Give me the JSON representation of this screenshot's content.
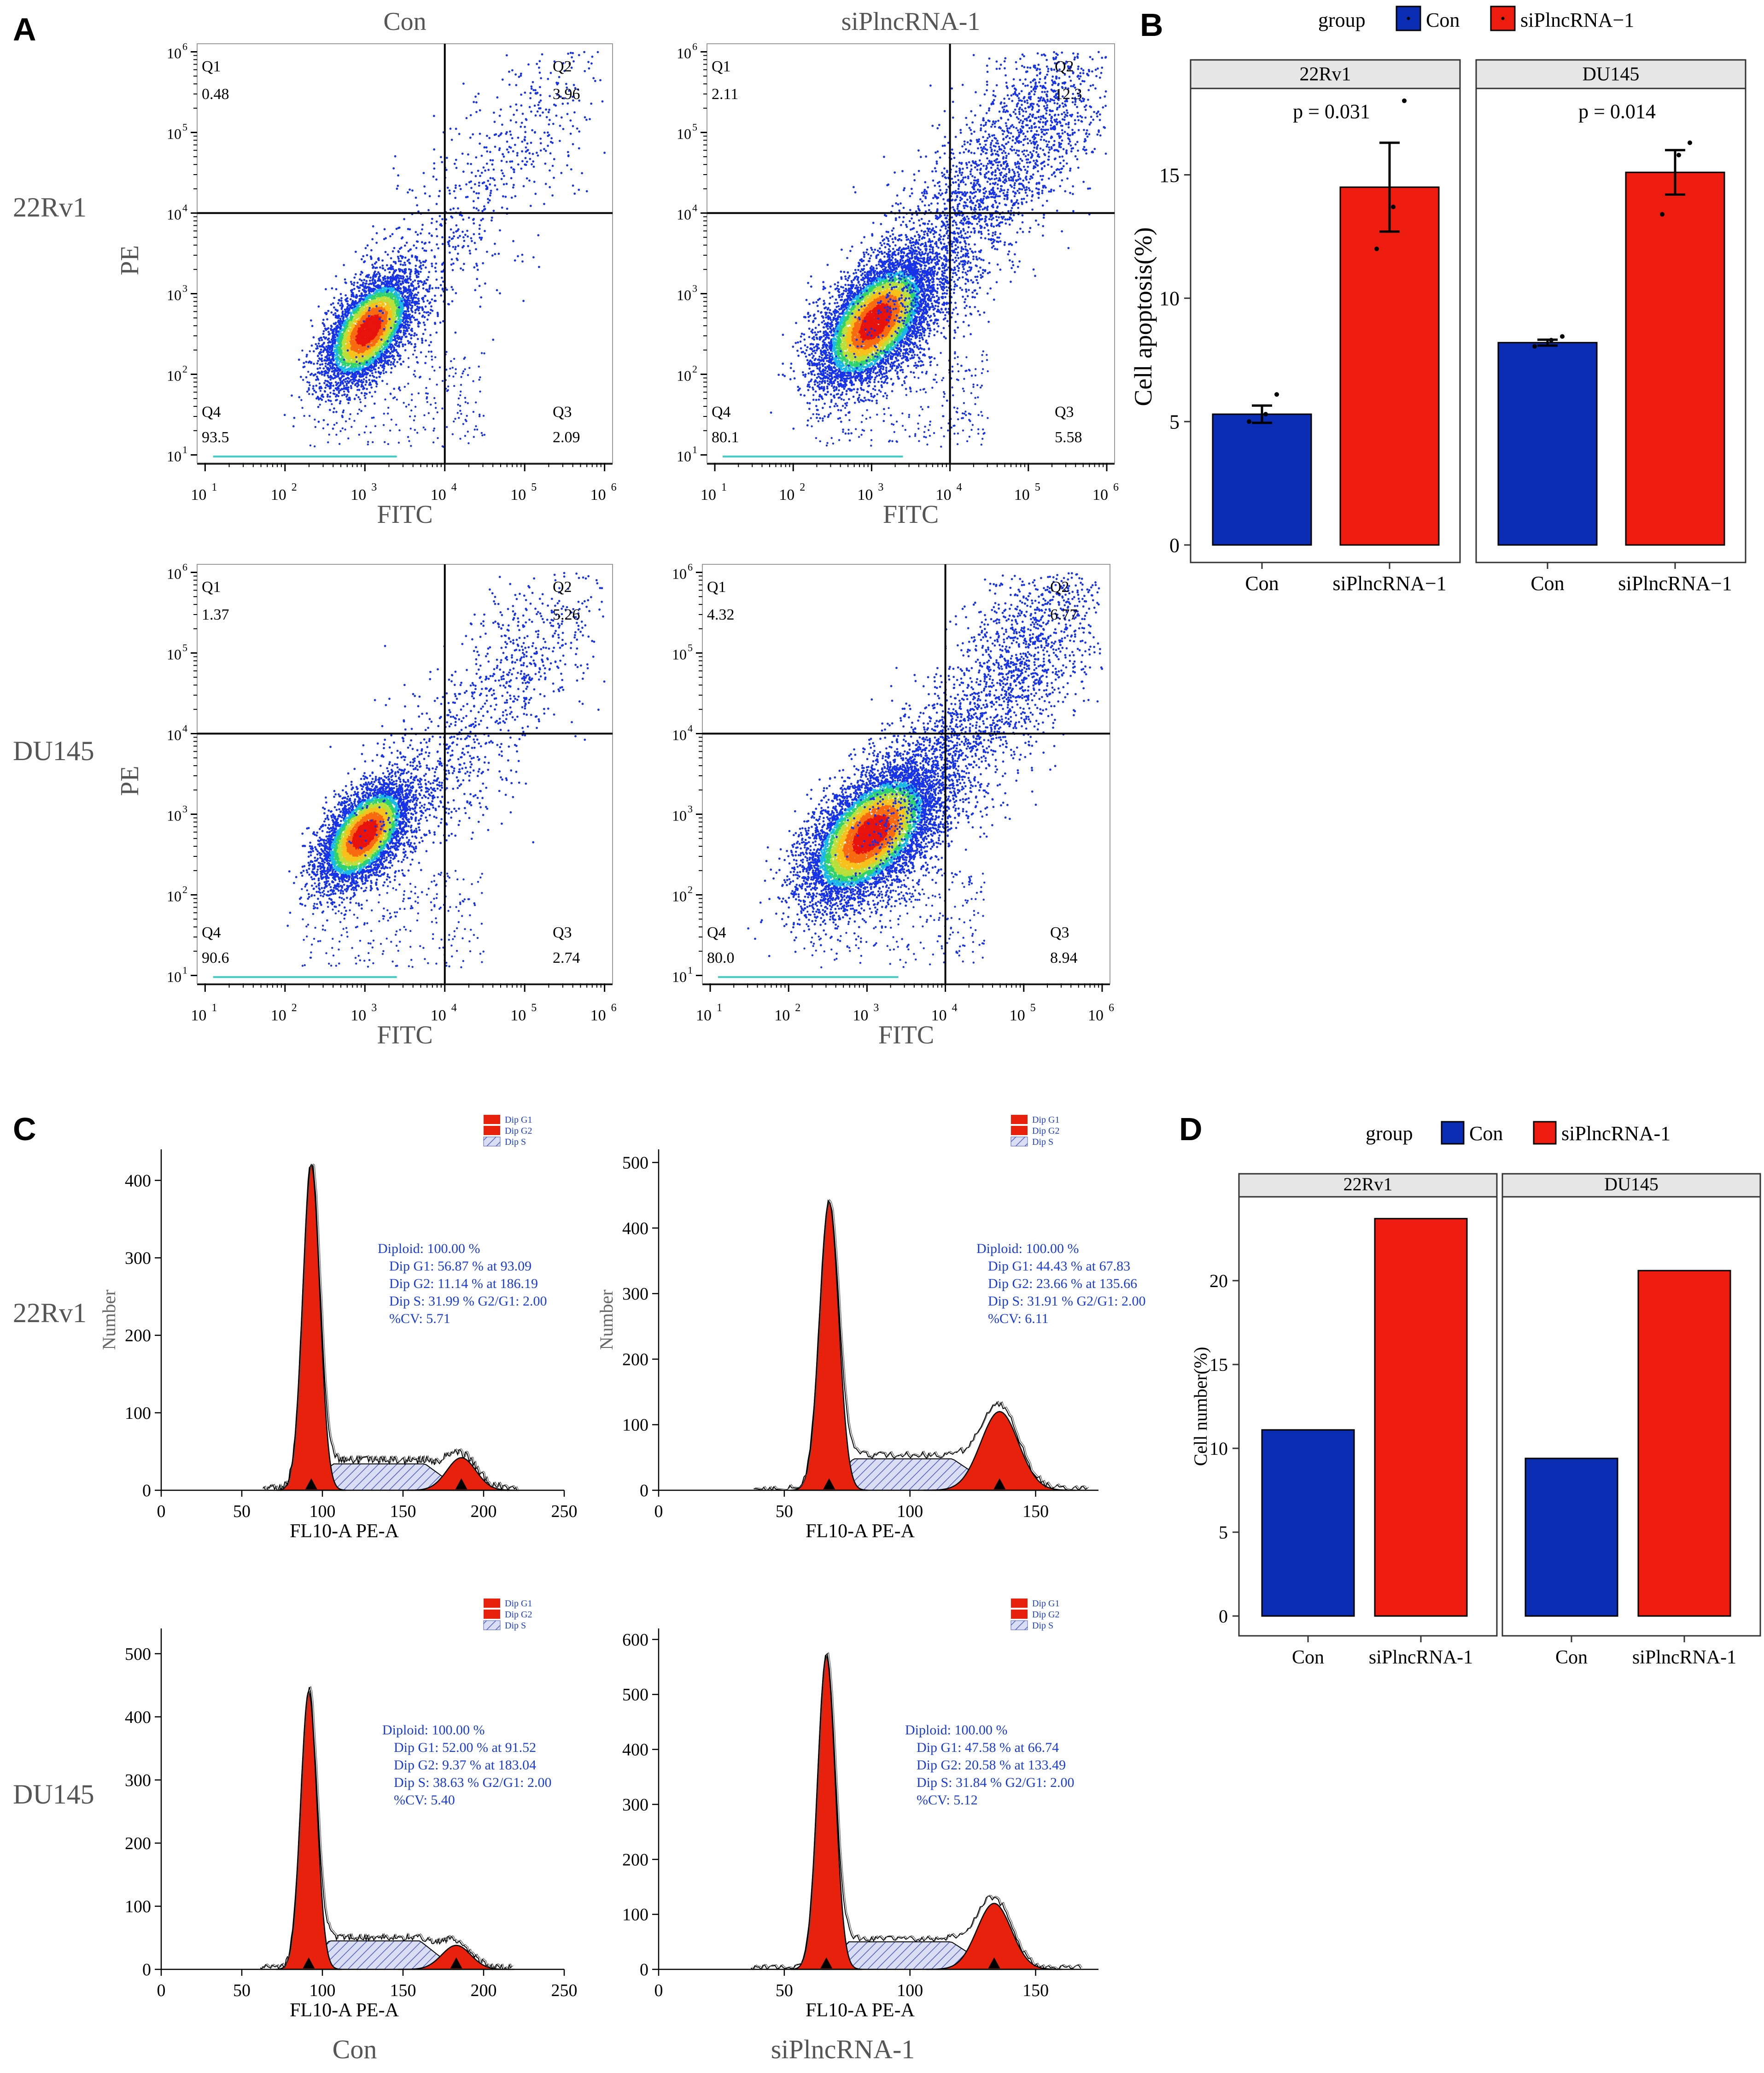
{
  "panel_letters": [
    "A",
    "B",
    "C",
    "D"
  ],
  "rows": [
    "22Rv1",
    "DU145"
  ],
  "columns": [
    "Con",
    "siPlncRNA-1"
  ],
  "flow_axes": {
    "xlabel": "FITC",
    "ylabel": "PE",
    "ticks": [
      "10",
      "10",
      "10",
      "10",
      "10",
      "10"
    ],
    "exponents": [
      "1",
      "2",
      "3",
      "4",
      "5",
      "6"
    ]
  },
  "colors": {
    "con": "#0a2db4",
    "si": "#ee1c0e",
    "strip": "#e6e6e6",
    "hist_red": "#e8210d",
    "cv_text": "#1a3cd6",
    "dot_blue": "#1733e8"
  },
  "chart_data": [
    {
      "panel": "A",
      "type": "scatter",
      "description_quadrants": [
        "Q1",
        "Q2",
        "Q3",
        "Q4"
      ],
      "xlabel": "FITC",
      "ylabel": "PE",
      "plots": [
        {
          "row": "22Rv1",
          "col": "Con",
          "Q1": "0.48",
          "Q2": "3.96",
          "Q3": "2.09",
          "Q4": "93.5"
        },
        {
          "row": "22Rv1",
          "col": "siPlncRNA-1",
          "Q1": "2.11",
          "Q2": "12.3",
          "Q3": "5.58",
          "Q4": "80.1"
        },
        {
          "row": "DU145",
          "col": "Con",
          "Q1": "1.37",
          "Q2": "5.26",
          "Q3": "2.74",
          "Q4": "90.6"
        },
        {
          "row": "DU145",
          "col": "siPlncRNA-1",
          "Q1": "4.32",
          "Q2": "6.77",
          "Q3": "8.94",
          "Q4": "80.0"
        }
      ]
    },
    {
      "panel": "B",
      "type": "bar",
      "legend_title": "group",
      "legend": [
        "Con",
        "siPlncRNA−1"
      ],
      "ylabel": "Cell apoptosis(%)",
      "ylim": [
        0,
        18.5
      ],
      "yticks": [
        0,
        5,
        10,
        15
      ],
      "facets": [
        {
          "name": "22Rv1",
          "p": "p = 0.031",
          "categories": [
            "Con",
            "siPlncRNA−1"
          ],
          "values": [
            5.3,
            14.5
          ],
          "err": [
            0.35,
            1.8
          ],
          "points": [
            [
              5.0,
              5.3,
              6.1
            ],
            [
              12.0,
              13.7,
              18.0
            ]
          ]
        },
        {
          "name": "DU145",
          "p": "p = 0.014",
          "categories": [
            "Con",
            "siPlncRNA−1"
          ],
          "values": [
            8.2,
            15.1
          ],
          "err": [
            0.12,
            0.9
          ],
          "points": [
            [
              8.05,
              8.3,
              8.45
            ],
            [
              13.4,
              15.8,
              16.3
            ]
          ]
        }
      ]
    },
    {
      "panel": "C",
      "type": "area",
      "xlabel": "FL10-A PE-A",
      "ylabel": "Number",
      "legend": [
        "Dip G1",
        "Dip G2",
        "Dip S"
      ],
      "plots": [
        {
          "row": "22Rv1",
          "col": "Con",
          "xlim": [
            0,
            250
          ],
          "xticks": [
            0,
            50,
            100,
            150,
            200,
            250
          ],
          "ylim": [
            0,
            440
          ],
          "yticks": [
            0,
            100,
            200,
            300,
            400
          ],
          "g1_pos": 93.09,
          "g1_h": 420,
          "g1_sd": 5.3,
          "g2_pos": 186.19,
          "g2_h": 42,
          "g2_sd": 9,
          "s_h": 34,
          "stats": [
            "Diploid: 100.00 %",
            "Dip G1: 56.87 % at 93.09",
            "Dip G2: 11.14 % at 186.19",
            "Dip S: 31.99 %   G2/G1: 2.00",
            "%CV: 5.71"
          ]
        },
        {
          "row": "22Rv1",
          "col": "siPlncRNA-1",
          "xlim": [
            0,
            175
          ],
          "xticks": [
            0,
            50,
            100,
            150
          ],
          "xticklabels": [
            "0",
            "50",
            "100",
            "150"
          ],
          "ylim": [
            0,
            520
          ],
          "yticks": [
            0,
            100,
            200,
            300,
            400,
            500
          ],
          "g1_pos": 67.83,
          "g1_h": 440,
          "g1_sd": 3.8,
          "g2_pos": 135.66,
          "g2_h": 120,
          "g2_sd": 7.5,
          "s_h": 48,
          "stats": [
            "Diploid: 100.00 %",
            "Dip G1: 44.43 % at 67.83",
            "Dip G2: 23.66 % at 135.66",
            "Dip S: 31.91 %   G2/G1: 2.00",
            "%CV: 6.11"
          ]
        },
        {
          "row": "DU145",
          "col": "Con",
          "xlim": [
            0,
            250
          ],
          "xticks": [
            0,
            50,
            100,
            150,
            200,
            250
          ],
          "ylim": [
            0,
            540
          ],
          "yticks": [
            0,
            100,
            200,
            300,
            400,
            500
          ],
          "g1_pos": 91.52,
          "g1_h": 440,
          "g1_sd": 5.0,
          "g2_pos": 183.04,
          "g2_h": 38,
          "g2_sd": 9,
          "s_h": 45,
          "stats": [
            "Diploid: 100.00 %",
            "Dip G1: 52.00 % at 91.52",
            "Dip G2: 9.37 % at 183.04",
            "Dip S: 38.63 %   G2/G1: 2.00",
            "%CV: 5.40"
          ]
        },
        {
          "row": "DU145",
          "col": "siPlncRNA-1",
          "xlim": [
            0,
            175
          ],
          "xticks": [
            0,
            50,
            100,
            150
          ],
          "ylim": [
            0,
            620
          ],
          "yticks": [
            0,
            100,
            200,
            300,
            400,
            500,
            600
          ],
          "g1_pos": 66.74,
          "g1_h": 570,
          "g1_sd": 3.5,
          "g2_pos": 133.49,
          "g2_h": 120,
          "g2_sd": 6.8,
          "s_h": 50,
          "stats": [
            "Diploid: 100.00 %",
            "Dip G1: 47.58 % at 66.74",
            "Dip G2: 20.58 % at 133.49",
            "Dip S: 31.84 %   G2/G1: 2.00",
            "%CV: 5.12"
          ]
        }
      ]
    },
    {
      "panel": "D",
      "type": "bar",
      "legend_title": "group",
      "legend": [
        "Con",
        "siPlncRNA-1"
      ],
      "ylabel": "Cell number(%)",
      "ylim": [
        0,
        25
      ],
      "yticks": [
        0,
        5,
        10,
        15,
        20
      ],
      "facets": [
        {
          "name": "22Rv1",
          "categories": [
            "Con",
            "siPlncRNA-1"
          ],
          "values": [
            11.1,
            23.7
          ]
        },
        {
          "name": "DU145",
          "categories": [
            "Con",
            "siPlncRNA-1"
          ],
          "values": [
            9.4,
            20.6
          ]
        }
      ]
    }
  ]
}
